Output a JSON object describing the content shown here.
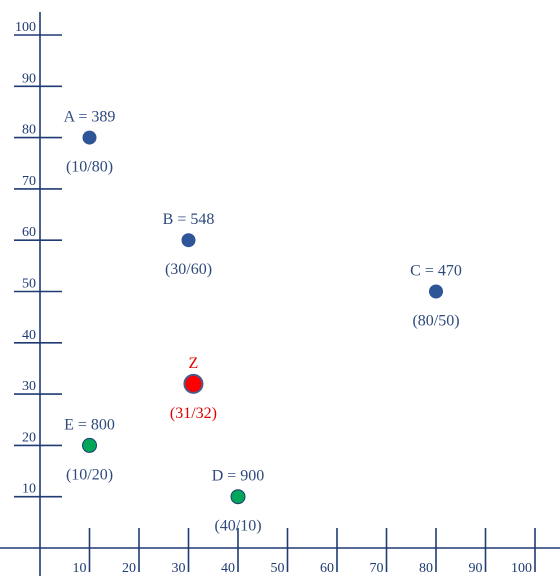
{
  "chart_data": {
    "type": "scatter",
    "title": "",
    "xlabel": "",
    "ylabel": "",
    "xlim": [
      0,
      100
    ],
    "ylim": [
      0,
      100
    ],
    "x_ticks": [
      "10",
      "20",
      "30",
      "40",
      "50",
      "60",
      "70",
      "80",
      "90",
      "100"
    ],
    "y_ticks": [
      "10",
      "20",
      "30",
      "40",
      "50",
      "60",
      "70",
      "80",
      "90",
      "100"
    ],
    "grid": false,
    "colors": {
      "axis": "#1f3b73",
      "blue_point": "#2e5597",
      "green_point": "#00a65a",
      "red_point": "#ff0000",
      "blue_text": "#2e4a7d",
      "red_text": "#e00000"
    },
    "points": [
      {
        "id": "A",
        "x": 10,
        "y": 80,
        "label": "A = 389",
        "coords": "(10/80)",
        "color": "blue"
      },
      {
        "id": "B",
        "x": 30,
        "y": 60,
        "label": "B = 548",
        "coords": "(30/60)",
        "color": "blue"
      },
      {
        "id": "C",
        "x": 80,
        "y": 50,
        "label": "C = 470",
        "coords": "(80/50)",
        "color": "blue"
      },
      {
        "id": "D",
        "x": 40,
        "y": 10,
        "label": "D = 900",
        "coords": "(40/10)",
        "color": "green"
      },
      {
        "id": "E",
        "x": 10,
        "y": 20,
        "label": "E = 800",
        "coords": "(10/20)",
        "color": "green"
      },
      {
        "id": "Z",
        "x": 31,
        "y": 32,
        "label": "Z",
        "coords": "(31/32)",
        "color": "red"
      }
    ]
  }
}
